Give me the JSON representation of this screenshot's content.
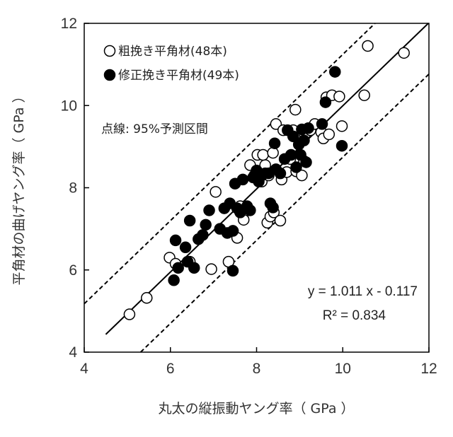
{
  "chart_data": {
    "type": "scatter",
    "xlabel": "丸太の縦振動ヤング率（ GPa ）",
    "ylabel": "平角材の曲げヤング率（ GPa ）",
    "xlim": [
      4,
      12
    ],
    "ylim": [
      4,
      12
    ],
    "xticks": [
      "4",
      "6",
      "8",
      "10",
      "12"
    ],
    "yticks": [
      "4",
      "6",
      "8",
      "10",
      "12"
    ],
    "grid": false,
    "legend_position": "top-left",
    "series": [
      {
        "name": "粗挽き平角材(48本)",
        "marker": "open-circle",
        "points": [
          [
            5.05,
            4.92
          ],
          [
            5.45,
            5.32
          ],
          [
            5.98,
            6.3
          ],
          [
            6.12,
            6.15
          ],
          [
            6.45,
            6.2
          ],
          [
            6.95,
            6.02
          ],
          [
            7.05,
            7.9
          ],
          [
            7.35,
            6.2
          ],
          [
            7.45,
            6.95
          ],
          [
            7.55,
            6.78
          ],
          [
            7.62,
            7.55
          ],
          [
            7.7,
            7.22
          ],
          [
            7.8,
            7.45
          ],
          [
            7.85,
            8.55
          ],
          [
            7.95,
            8.3
          ],
          [
            8.02,
            8.8
          ],
          [
            8.12,
            8.15
          ],
          [
            8.2,
            8.55
          ],
          [
            8.15,
            8.8
          ],
          [
            8.28,
            8.3
          ],
          [
            8.25,
            7.15
          ],
          [
            8.32,
            7.3
          ],
          [
            8.38,
            8.85
          ],
          [
            8.4,
            7.4
          ],
          [
            8.45,
            9.55
          ],
          [
            8.55,
            7.2
          ],
          [
            8.58,
            8.2
          ],
          [
            8.62,
            9.4
          ],
          [
            8.7,
            8.38
          ],
          [
            8.78,
            8.7
          ],
          [
            8.85,
            9.4
          ],
          [
            8.9,
            9.9
          ],
          [
            8.92,
            8.4
          ],
          [
            9.05,
            8.3
          ],
          [
            9.1,
            8.65
          ],
          [
            9.12,
            9.3
          ],
          [
            9.25,
            9.4
          ],
          [
            9.35,
            9.55
          ],
          [
            9.5,
            9.35
          ],
          [
            9.55,
            9.2
          ],
          [
            9.62,
            10.2
          ],
          [
            9.68,
            9.3
          ],
          [
            9.75,
            10.25
          ],
          [
            9.92,
            10.22
          ],
          [
            9.98,
            9.5
          ],
          [
            10.5,
            10.25
          ],
          [
            10.58,
            11.45
          ],
          [
            11.42,
            11.28
          ]
        ]
      },
      {
        "name": "修正挽き平角材(49本)",
        "marker": "filled-circle",
        "points": [
          [
            6.08,
            5.75
          ],
          [
            6.12,
            6.72
          ],
          [
            6.18,
            6.05
          ],
          [
            6.35,
            6.55
          ],
          [
            6.45,
            7.2
          ],
          [
            6.4,
            6.2
          ],
          [
            6.55,
            6.05
          ],
          [
            6.65,
            6.75
          ],
          [
            6.75,
            6.85
          ],
          [
            6.82,
            7.1
          ],
          [
            6.9,
            7.45
          ],
          [
            7.15,
            7.0
          ],
          [
            7.25,
            7.5
          ],
          [
            7.32,
            6.9
          ],
          [
            7.38,
            7.62
          ],
          [
            7.45,
            5.98
          ],
          [
            7.45,
            6.95
          ],
          [
            7.5,
            8.1
          ],
          [
            7.55,
            7.5
          ],
          [
            7.62,
            7.4
          ],
          [
            7.68,
            8.2
          ],
          [
            7.78,
            7.55
          ],
          [
            7.85,
            7.45
          ],
          [
            7.92,
            8.25
          ],
          [
            8.0,
            8.42
          ],
          [
            8.05,
            8.15
          ],
          [
            8.12,
            8.3
          ],
          [
            8.2,
            8.35
          ],
          [
            8.28,
            8.35
          ],
          [
            8.32,
            7.62
          ],
          [
            8.38,
            7.52
          ],
          [
            8.42,
            9.08
          ],
          [
            8.45,
            8.45
          ],
          [
            8.55,
            8.35
          ],
          [
            8.65,
            8.7
          ],
          [
            8.72,
            9.4
          ],
          [
            8.8,
            8.8
          ],
          [
            8.85,
            9.25
          ],
          [
            8.92,
            8.5
          ],
          [
            8.98,
            9.05
          ],
          [
            9.02,
            8.8
          ],
          [
            9.05,
            9.42
          ],
          [
            9.1,
            9.15
          ],
          [
            9.15,
            8.62
          ],
          [
            9.2,
            9.45
          ],
          [
            9.52,
            9.55
          ],
          [
            9.6,
            10.08
          ],
          [
            9.82,
            10.82
          ],
          [
            9.98,
            9.02
          ]
        ]
      }
    ],
    "regression": {
      "slope": 1.011,
      "intercept": -0.117,
      "x_range": [
        4.5,
        12
      ]
    },
    "prediction_band": {
      "label": "点線: 95%予測区間",
      "offset": 1.25
    },
    "annotation": {
      "equation": "y = 1.011 x - 0.117",
      "r2_text": "R² = 0.834"
    }
  }
}
